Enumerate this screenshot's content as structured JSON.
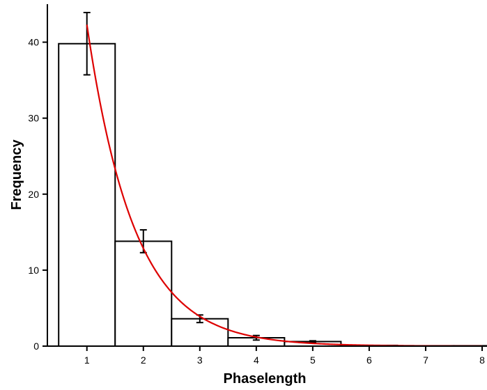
{
  "chart_data": {
    "type": "bar",
    "title": "",
    "xlabel": "Phaselength",
    "ylabel": "Frequency",
    "xlim": [
      0.3,
      8
    ],
    "ylim": [
      0,
      45
    ],
    "x_ticks": [
      1,
      2,
      3,
      4,
      5,
      6,
      7,
      8
    ],
    "y_ticks": [
      0,
      10,
      20,
      30,
      40
    ],
    "bar_color": "#ffffff",
    "bar_edge_color": "#000000",
    "bars": [
      {
        "x": 1,
        "value": 39.8,
        "error": 4.1
      },
      {
        "x": 2,
        "value": 13.8,
        "error": 1.5
      },
      {
        "x": 3,
        "value": 3.6,
        "error": 0.5
      },
      {
        "x": 4,
        "value": 1.1,
        "error": 0.3
      },
      {
        "x": 5,
        "value": 0.6,
        "error": 0.1
      },
      {
        "x": 6,
        "value": 0.1,
        "error": 0
      },
      {
        "x": 7,
        "value": 0.05,
        "error": 0
      },
      {
        "x": 8,
        "value": 0.05,
        "error": 0
      }
    ],
    "fit": {
      "type": "exponential",
      "color": "#dd0000",
      "amplitude": 42.3,
      "decay": 0.84,
      "x_start": 1.0,
      "x_end": 8.0
    },
    "grid": false,
    "legend": "none"
  }
}
